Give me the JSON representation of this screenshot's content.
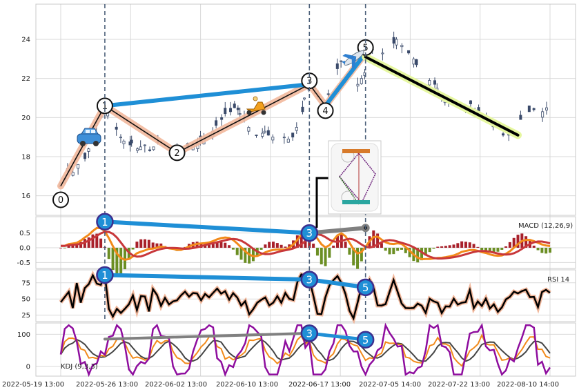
{
  "chart_data": {
    "type": "candlestick",
    "x_tick_labels": [
      "2022-05-19 13:00",
      "2022-05-26 13:00",
      "2022-06-02 13:00",
      "2022-06-10 13:00",
      "2022-06-17 13:00",
      "2022-07-05 14:00",
      "2022-07-22 13:00",
      "2022-08-10 14:00"
    ],
    "grid": true,
    "price_panel": {
      "ylim": [
        15,
        25.8
      ],
      "yticks": [
        16,
        18,
        20,
        22,
        24
      ],
      "close_path": [
        16.5,
        16.9,
        17.4,
        17.2,
        17.6,
        17.5,
        17.9,
        18.4,
        19.2,
        19.7,
        20.3,
        20.5,
        20.3,
        19.8,
        19.4,
        19.0,
        18.8,
        18.6,
        18.7,
        18.4,
        18.5,
        18.6,
        18.3,
        18.5,
        18.7,
        18.6,
        18.7,
        18.5,
        18.4,
        18.2,
        18.3,
        18.4,
        18.5,
        18.6,
        18.7,
        18.8,
        18.9,
        19.0,
        19.3,
        19.6,
        19.9,
        20.2,
        20.3,
        20.5,
        20.4,
        20.2,
        20.0,
        19.5,
        19.3,
        19.1,
        19.2,
        19.3,
        19.1,
        19.0,
        19.0,
        18.9,
        19.0,
        18.9,
        19.0,
        19.5,
        20.3,
        21.0,
        21.4,
        21.6,
        21.2,
        20.6,
        20.7,
        21.2,
        21.8,
        22.5,
        22.9,
        23.0,
        22.5,
        21.8,
        21.7,
        22.0,
        22.3,
        23.1,
        23.5,
        23.4,
        23.3,
        23.0,
        23.3,
        23.8,
        24.0,
        23.7,
        23.5,
        23.3,
        23.0,
        22.7,
        22.4,
        22.0,
        21.9,
        21.7,
        21.5,
        21.1,
        21.0,
        20.8,
        20.8,
        20.6,
        20.5,
        20.5,
        20.7,
        20.4,
        20.3,
        20.1,
        20.0,
        19.8,
        19.6,
        19.3,
        19.1,
        19.0,
        19.1,
        19.4,
        19.6,
        19.9,
        20.1,
        20.3,
        20.4,
        20.2,
        20.3,
        20.5,
        20.6
      ],
      "wave_points": [
        {
          "label": "0",
          "price": 16.5
        },
        {
          "label": "1",
          "price": 20.6
        },
        {
          "label": "2",
          "price": 18.2
        },
        {
          "label": "3",
          "price": 21.7
        },
        {
          "label": "4",
          "price": 20.6
        },
        {
          "label": "5",
          "price": 23.3
        }
      ],
      "trend_lines": [
        {
          "name": "blue-trend-1-3",
          "from": [
            1,
            20.6
          ],
          "to": [
            3,
            21.7
          ]
        },
        {
          "name": "blue-trend-4-5",
          "from": [
            4,
            20.6
          ],
          "to": [
            5,
            23.3
          ]
        },
        {
          "name": "black-down-trend",
          "from": [
            5,
            23.1
          ],
          "to": [
            5.9,
            19.1
          ]
        }
      ],
      "marker_icons": [
        "car-icon",
        "scooter-icon",
        "airplane-icon"
      ]
    },
    "macd_panel": {
      "label": "MACD (12,26,9)",
      "ylim": [
        -0.7,
        1.05
      ],
      "yticks": [
        -0.5,
        0.0,
        0.5
      ],
      "badges": [
        "1",
        "3"
      ]
    },
    "rsi_panel": {
      "label": "RSI 14",
      "ylim": [
        15,
        95
      ],
      "yticks": [
        25,
        50,
        75
      ],
      "badges": [
        "1",
        "3",
        "5"
      ]
    },
    "kdj_panel": {
      "label": "KDJ (9,3,3)",
      "ylim": [
        -30,
        135
      ],
      "yticks": [
        0,
        100
      ],
      "badges": [
        "3",
        "5"
      ]
    },
    "colors": {
      "candle": "#3a4a6a",
      "wave_band": "#f2b89c",
      "trend_blue": "#1f8fd6",
      "down_black": "#000000",
      "down_glow": "#e6f7a0",
      "macd_orange": "#f28a1a",
      "macd_red": "#c8373a",
      "hist_pos": "#a8202a",
      "hist_neg": "#6b8e23",
      "rsi_line": "#000000",
      "rsi_glow": "#f2b89c",
      "kdj_k": "#f28a1a",
      "kdj_d": "#444444",
      "kdj_j": "#8e0d9e",
      "divergence_gray": "#808080",
      "badge_fill": "#1f8fd6",
      "badge_ring": "#3c2f8f",
      "vline": "#4c607a"
    }
  }
}
